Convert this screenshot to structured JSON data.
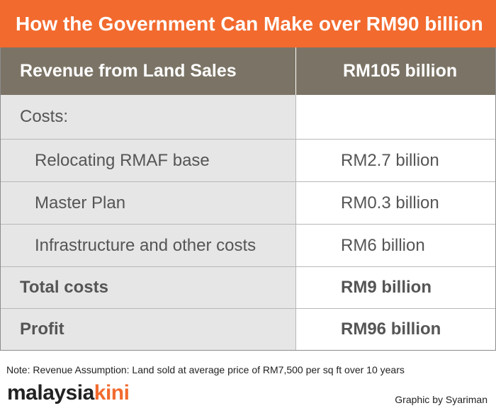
{
  "title": "How the Government Can Make over RM90 billion",
  "table": {
    "header": {
      "label": "Revenue from Land Sales",
      "value": "RM105 billion"
    },
    "costs_label": "Costs:",
    "items": [
      {
        "label": "Relocating RMAF base",
        "value": "RM2.7 billion"
      },
      {
        "label": "Master Plan",
        "value": "RM0.3 billion"
      },
      {
        "label": "Infrastructure and other costs",
        "value": "RM6 billion"
      }
    ],
    "total": {
      "label": "Total costs",
      "value": "RM9 billion"
    },
    "profit": {
      "label": "Profit",
      "value": "RM96 billion"
    }
  },
  "note": "Note: Revenue Assumption: Land sold at average price of RM7,500 per sq ft over 10 years",
  "logo": {
    "part1": "malaysia",
    "part2": "kini"
  },
  "credit": "Graphic by Syariman",
  "colors": {
    "accent": "#f26a2e",
    "header": "#7b7466",
    "label_bg": "#e6e6e6"
  }
}
